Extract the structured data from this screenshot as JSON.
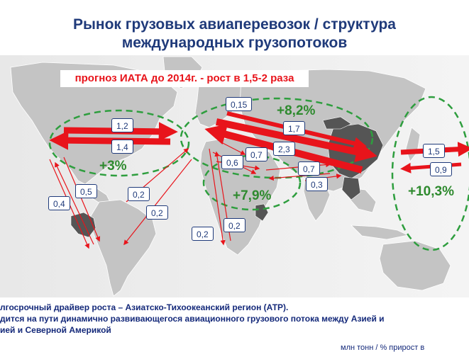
{
  "title_line1": "Рынок грузовых авиаперевозок / структура",
  "title_line2": "международных грузопотоков",
  "forecast": "прогноз ИАТА до 2014г. - рост в 1,5-2 раза",
  "flows": {
    "transatlantic_top": "1,2",
    "transatlantic_bottom": "1,4",
    "europe_asia_small": "0,15",
    "europe_asia_top": "1,7",
    "europe_asia_mid": "2,3",
    "europe_mideast": "0,7",
    "europe_africa": "0,6",
    "asia_mideast_a": "0,7",
    "asia_mideast_b": "0,3",
    "transpacific_top": "1,5",
    "transpacific_bottom": "0,9",
    "americas_a": "0,5",
    "americas_b": "0,4",
    "europe_latam_a": "0,2",
    "europe_latam_b": "0,2",
    "europe_africa_south_a": "0,2",
    "europe_africa_south_b": "0,2"
  },
  "growth": {
    "atlantic": "+3%",
    "europe_asia": "+8,2%",
    "mideast_africa": "+7,9%",
    "pacific": "+10,3%"
  },
  "footer": {
    "line1": "лгосрочный драйвер роста – Азиатско-Тихоокеанский регион (АТР).",
    "line2": "дится на пути динамично развивающегося авиационного грузового потока между Азией и",
    "line3": "ией и Северной Америкой"
  },
  "source_note": "млн тонн / % прирост в",
  "colors": {
    "title": "#1f3a7a",
    "arrow": "#e8141b",
    "growth": "#2e8a2e",
    "label_border": "#1f3a7a",
    "land": "#c4c4c4"
  }
}
